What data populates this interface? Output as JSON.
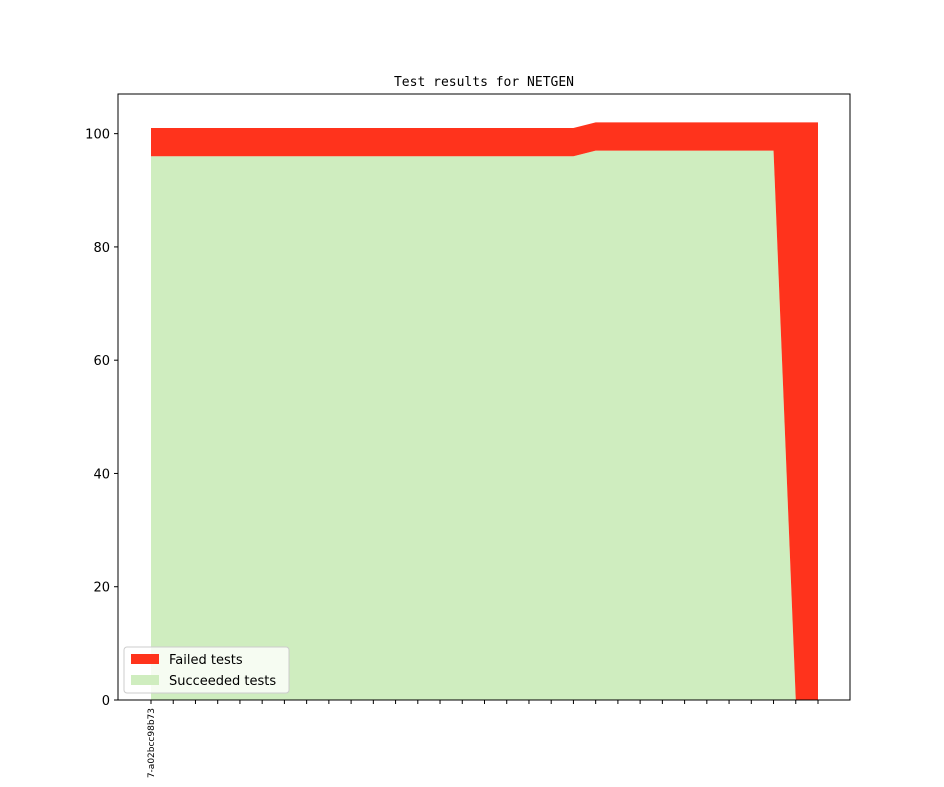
{
  "chart_data": {
    "type": "area",
    "title": "Test results for NETGEN",
    "xlabel": "",
    "ylabel": "",
    "ylim": [
      0,
      107
    ],
    "yticks": [
      0,
      20,
      40,
      60,
      80,
      100
    ],
    "x_count": 31,
    "x_tick_labels": [
      "7-a02bcc98b73"
    ],
    "stacked": true,
    "series": [
      {
        "name": "Succeeded tests",
        "color": "#cfedbf",
        "values": [
          96,
          96,
          96,
          96,
          96,
          96,
          96,
          96,
          96,
          96,
          96,
          96,
          96,
          96,
          96,
          96,
          96,
          96,
          96,
          96,
          97,
          97,
          97,
          97,
          97,
          97,
          97,
          97,
          97,
          0,
          0
        ]
      },
      {
        "name": "Failed tests",
        "color": "#ff331c",
        "values": [
          5,
          5,
          5,
          5,
          5,
          5,
          5,
          5,
          5,
          5,
          5,
          5,
          5,
          5,
          5,
          5,
          5,
          5,
          5,
          5,
          5,
          5,
          5,
          5,
          5,
          5,
          5,
          5,
          5,
          102,
          102
        ]
      }
    ],
    "legend": {
      "position": "lower-left",
      "entries": [
        "Failed tests",
        "Succeeded tests"
      ]
    },
    "grid": false
  }
}
